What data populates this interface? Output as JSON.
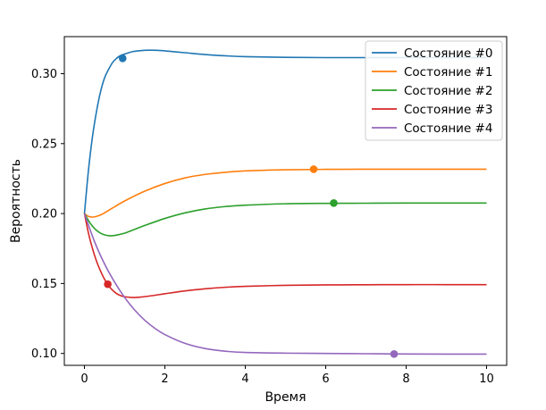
{
  "chart_data": {
    "type": "line",
    "title": "",
    "xlabel": "Время",
    "ylabel": "Вероятность",
    "xlim": [
      -0.5,
      10.5
    ],
    "ylim": [
      0.0915,
      0.3265
    ],
    "xticks": [
      0,
      2,
      4,
      6,
      8,
      10
    ],
    "yticks": [
      0.1,
      0.15,
      0.2,
      0.25,
      0.3
    ],
    "ytick_labels": [
      "0.10",
      "0.15",
      "0.20",
      "0.25",
      "0.30"
    ],
    "grid": false,
    "legend": "top-right",
    "series": [
      {
        "name": "Состояние #0",
        "color": "#1f77b4",
        "x": [
          0,
          0.1,
          0.2,
          0.3,
          0.4,
          0.5,
          0.6,
          0.7,
          0.8,
          0.9,
          1.0,
          1.2,
          1.4,
          1.6,
          1.8,
          2.0,
          2.5,
          3.0,
          3.5,
          4.0,
          5.0,
          6.0,
          7.0,
          8.0,
          9.0,
          10.0
        ],
        "y": [
          0.2,
          0.231,
          0.255,
          0.273,
          0.287,
          0.297,
          0.303,
          0.308,
          0.311,
          0.313,
          0.314,
          0.3158,
          0.3165,
          0.3168,
          0.3167,
          0.3163,
          0.315,
          0.3137,
          0.3128,
          0.3122,
          0.3117,
          0.3115,
          0.3115,
          0.3115,
          0.3115,
          0.3115
        ]
      },
      {
        "name": "Состояние #1",
        "color": "#ff7f0e",
        "x": [
          0,
          0.1,
          0.2,
          0.3,
          0.4,
          0.5,
          0.7,
          1.0,
          1.5,
          2.0,
          2.5,
          3.0,
          3.5,
          4.0,
          5.0,
          6.0,
          7.0,
          8.0,
          9.0,
          10.0
        ],
        "y": [
          0.2,
          0.198,
          0.1975,
          0.198,
          0.199,
          0.2005,
          0.204,
          0.209,
          0.216,
          0.2215,
          0.2255,
          0.228,
          0.2295,
          0.2305,
          0.2313,
          0.2316,
          0.2317,
          0.2317,
          0.2317,
          0.2317
        ]
      },
      {
        "name": "Состояние #2",
        "color": "#2ca02c",
        "x": [
          0,
          0.1,
          0.2,
          0.3,
          0.4,
          0.5,
          0.6,
          0.7,
          0.8,
          1.0,
          1.2,
          1.5,
          2.0,
          2.5,
          3.0,
          3.5,
          4.0,
          5.0,
          6.0,
          7.0,
          8.0,
          9.0,
          10.0
        ],
        "y": [
          0.2,
          0.195,
          0.191,
          0.188,
          0.186,
          0.1848,
          0.1842,
          0.1842,
          0.1846,
          0.186,
          0.1882,
          0.1915,
          0.1965,
          0.2005,
          0.2033,
          0.205,
          0.206,
          0.207,
          0.2073,
          0.2074,
          0.2075,
          0.2075,
          0.2075
        ]
      },
      {
        "name": "Состояние #3",
        "color": "#d62728",
        "x": [
          0,
          0.1,
          0.2,
          0.3,
          0.4,
          0.5,
          0.6,
          0.7,
          0.8,
          0.9,
          1.0,
          1.2,
          1.4,
          1.6,
          1.8,
          2.0,
          2.5,
          3.0,
          3.5,
          4.0,
          5.0,
          6.0,
          7.0,
          8.0,
          9.0,
          10.0
        ],
        "y": [
          0.2,
          0.186,
          0.175,
          0.166,
          0.159,
          0.153,
          0.1485,
          0.1452,
          0.1428,
          0.1413,
          0.1405,
          0.14,
          0.1403,
          0.141,
          0.1418,
          0.1427,
          0.1447,
          0.1462,
          0.1473,
          0.148,
          0.1487,
          0.149,
          0.1491,
          0.1492,
          0.1492,
          0.1492
        ]
      },
      {
        "name": "Состояние #4",
        "color": "#9467bd",
        "x": [
          0,
          0.25,
          0.5,
          0.75,
          1.0,
          1.25,
          1.5,
          1.75,
          2.0,
          2.5,
          3.0,
          3.5,
          4.0,
          5.0,
          6.0,
          7.0,
          8.0,
          9.0,
          10.0
        ],
        "y": [
          0.2,
          0.18,
          0.164,
          0.151,
          0.14,
          0.131,
          0.1237,
          0.118,
          0.1135,
          0.1072,
          0.1035,
          0.1016,
          0.1007,
          0.1002,
          0.1,
          0.0998,
          0.0996,
          0.0995,
          0.0995
        ]
      }
    ],
    "markers": [
      {
        "series": "Состояние #0",
        "x": 0.95,
        "y": 0.311
      },
      {
        "series": "Состояние #1",
        "x": 5.7,
        "y": 0.2317
      },
      {
        "series": "Состояние #2",
        "x": 6.2,
        "y": 0.2075
      },
      {
        "series": "Состояние #3",
        "x": 0.58,
        "y": 0.1495
      },
      {
        "series": "Состояние #4",
        "x": 7.7,
        "y": 0.0996
      }
    ]
  }
}
